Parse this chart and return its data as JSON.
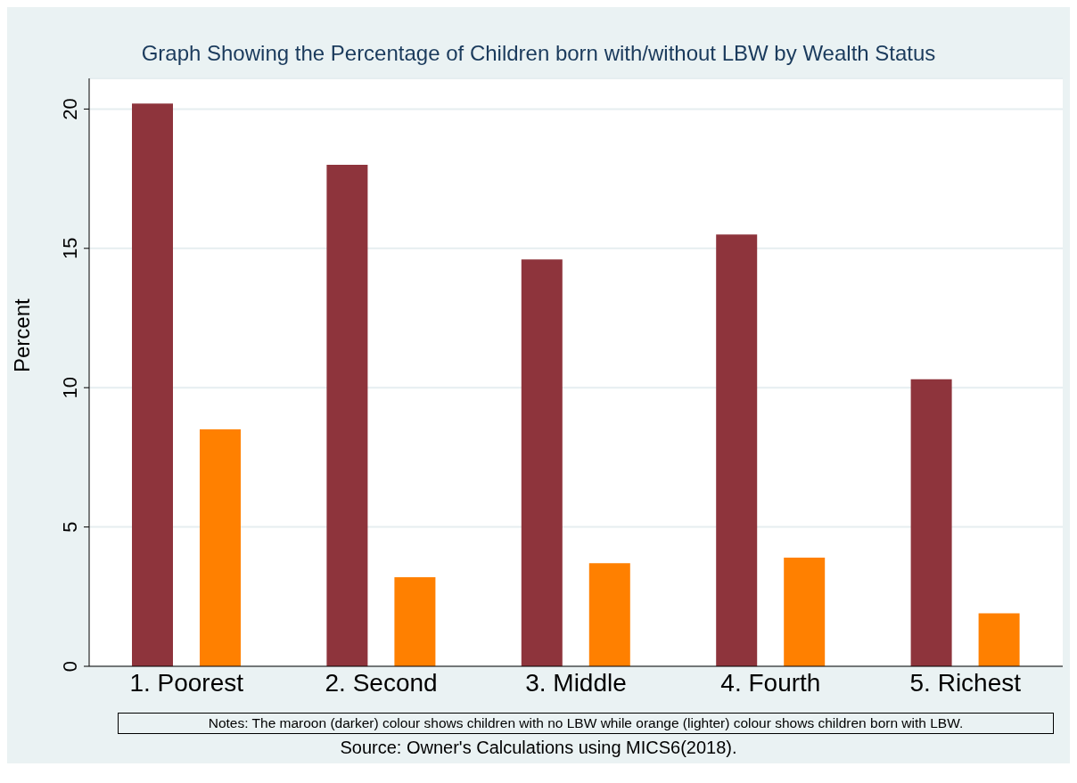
{
  "chart_data": {
    "type": "bar",
    "title": "Graph Showing the Percentage of Children born with/without LBW by Wealth Status",
    "ylabel": "Percent",
    "categories": [
      "1. Poorest",
      "2. Second",
      "3. Middle",
      "4. Fourth",
      "5. Richest"
    ],
    "series": [
      {
        "color": "#8e343c",
        "values": [
          20.2,
          18.0,
          14.6,
          15.5,
          10.3
        ]
      },
      {
        "color": "#ff8000",
        "values": [
          8.5,
          3.2,
          3.7,
          3.9,
          1.9
        ]
      }
    ],
    "ylim": [
      0,
      21.1
    ],
    "yticks": [
      0,
      5,
      10,
      15,
      20
    ],
    "grid": "y",
    "legend": false,
    "annotations": [
      "Notes: The maroon (darker) colour shows children with no LBW while orange (lighter) colour shows children born with LBW.",
      "Source: Owner's Calculations using MICS6(2018)."
    ]
  }
}
